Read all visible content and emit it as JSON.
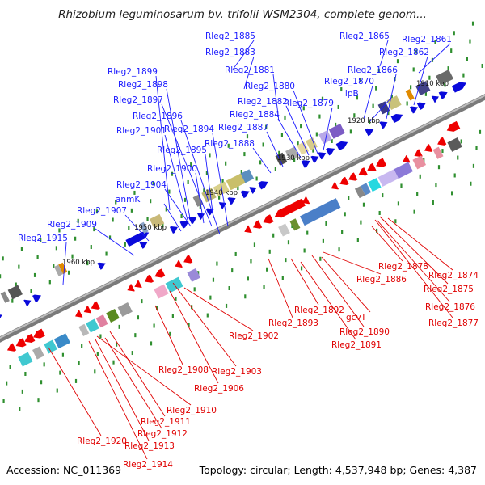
{
  "title": "Rhizobium leguminosarum bv. trifolii WSM2304, complete genom...",
  "footer": {
    "accession": "Accession: NC_011369",
    "topology": "Topology: circular; Length: 4,537,948 bp; Genes: 4,387"
  },
  "colors": {
    "forward_label": "#1a1aff",
    "reverse_label": "#e00000",
    "backbone": "#8c8c8c"
  },
  "kbp_marks": [
    "1910 kbp",
    "1920 kbp",
    "1930 kbp",
    "1940 kbp",
    "1950 kbp",
    "1960 kbp"
  ],
  "forward_genes": [
    "Rleg2_1885",
    "Rleg2_1865",
    "Rleg2_1861",
    "Rleg2_1883",
    "Rleg2_1862",
    "Rleg2_1881",
    "Rleg2_1866",
    "Rleg2_1899",
    "Rleg2_1870",
    "Rleg2_1898",
    "Rleg2_1880",
    "lipB",
    "Rleg2_1897",
    "Rleg2_1882",
    "Rleg2_1879",
    "Rleg2_1896",
    "Rleg2_1884",
    "Rleg2_1901",
    "Rleg2_1894",
    "Rleg2_1887",
    "Rleg2_1888",
    "Rleg2_1895",
    "Rleg2_1900",
    "Rleg2_1904",
    "anmK",
    "Rleg2_1907",
    "Rleg2_1909",
    "Rleg2_1915"
  ],
  "reverse_genes": [
    "Rleg2_1878",
    "Rleg2_1874",
    "Rleg2_1886",
    "Rleg2_1875",
    "Rleg2_1876",
    "Rleg2_1892",
    "gcvT",
    "Rleg2_1877",
    "Rleg2_1893",
    "Rleg2_1890",
    "Rleg2_1902",
    "Rleg2_1891",
    "Rleg2_1908",
    "Rleg2_1903",
    "Rleg2_1906",
    "Rleg2_1910",
    "Rleg2_1911",
    "Rleg2_1912",
    "Rleg2_1920",
    "Rleg2_1913",
    "Rleg2_1914"
  ]
}
